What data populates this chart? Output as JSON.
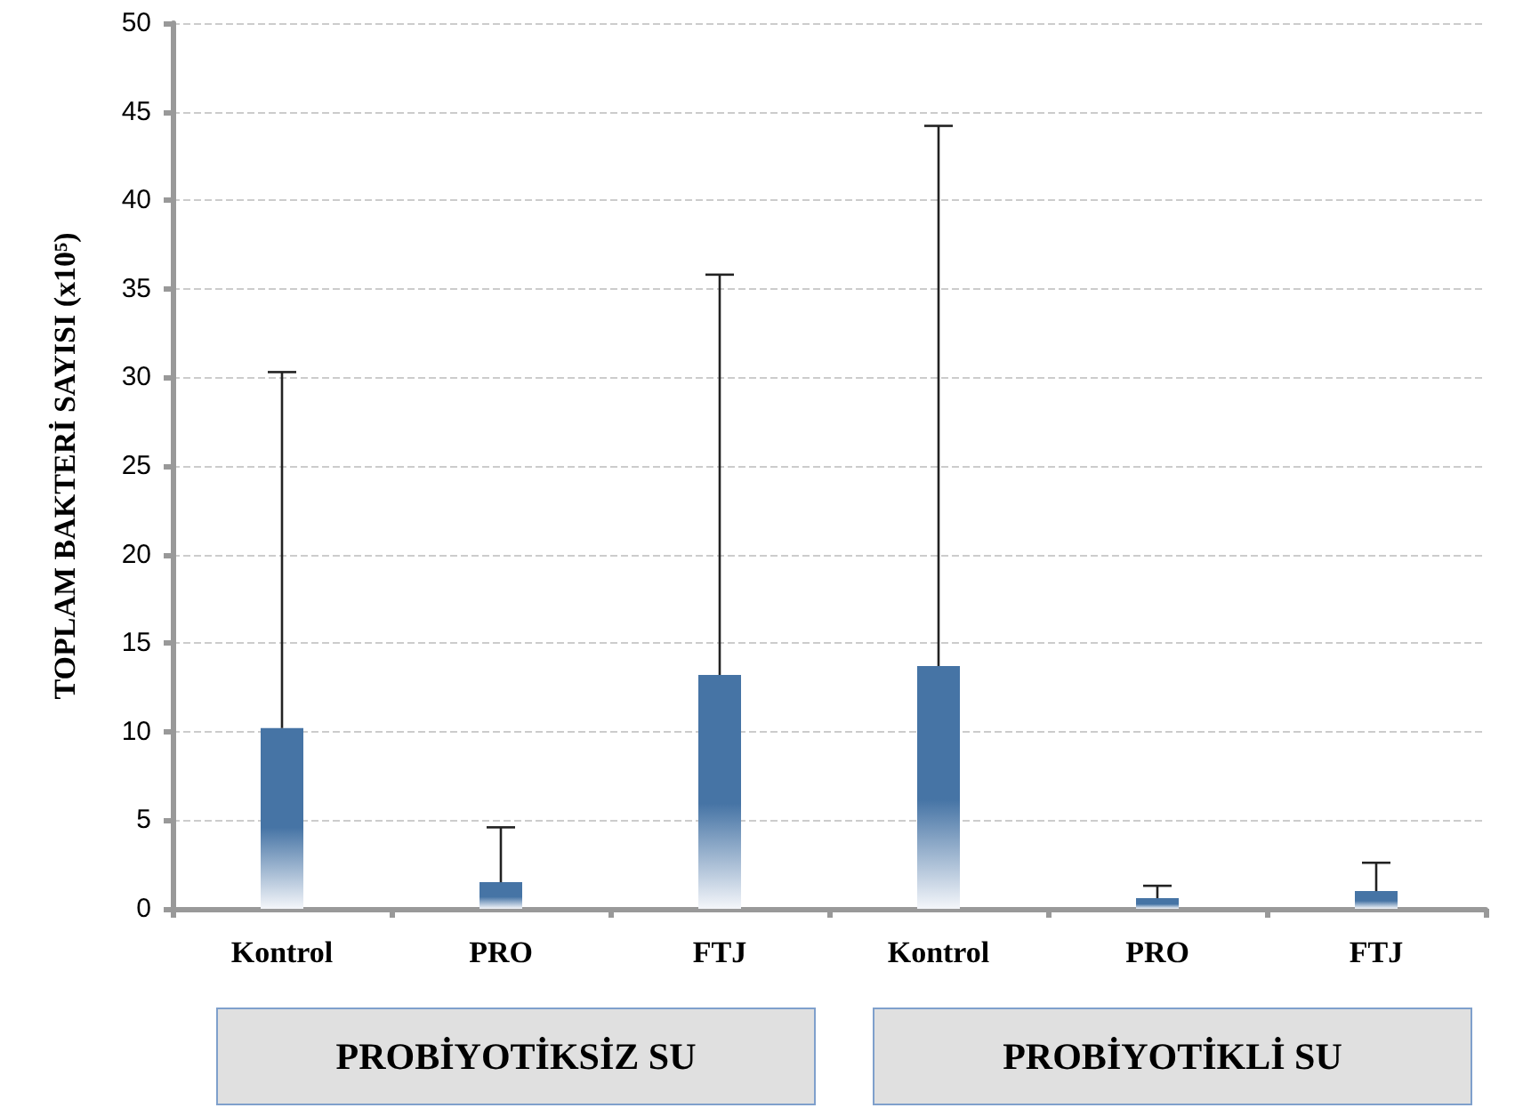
{
  "chart_data": {
    "type": "bar",
    "ylabel": "TOPLAM BAKTERİ SAYISI (x10⁵)",
    "categories": [
      "Kontrol",
      "PRO",
      "FTJ",
      "Kontrol",
      "PRO",
      "FTJ"
    ],
    "values": [
      10.2,
      1.5,
      13.2,
      13.7,
      0.6,
      1.0
    ],
    "errors": [
      [
        10.2,
        30.3
      ],
      [
        1.5,
        4.6
      ],
      [
        13.2,
        35.8
      ],
      [
        13.7,
        44.2
      ],
      [
        0.6,
        1.3
      ],
      [
        1.0,
        2.6
      ]
    ],
    "color": "#4674a5",
    "ylim": [
      0,
      50
    ],
    "yticks": [
      0,
      5,
      10,
      15,
      20,
      25,
      30,
      35,
      40,
      45,
      50
    ],
    "grid": "y",
    "annotations": [
      "PROBİYOTİKSİZ SU",
      "PROBİYOTİKLİ SU"
    ]
  }
}
